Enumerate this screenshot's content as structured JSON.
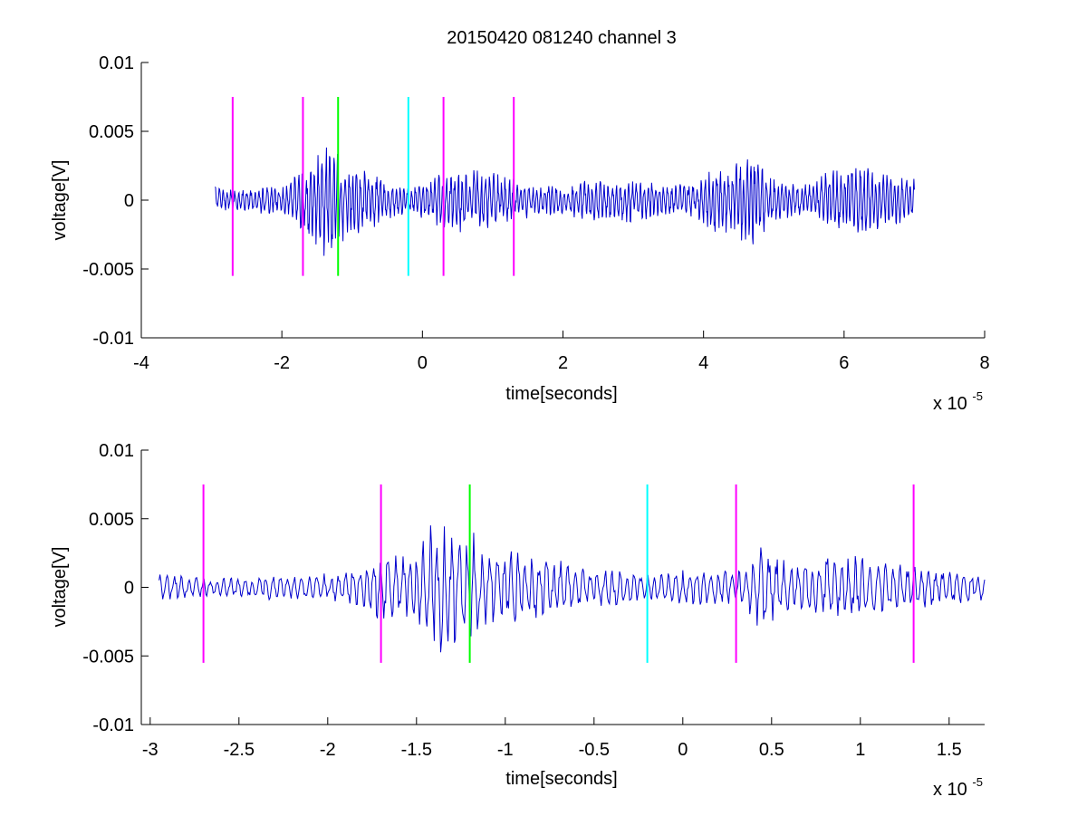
{
  "title": "20150420 081240 channel 3",
  "colors": {
    "signal": "#0000cc",
    "marker_magenta": "#ff00ff",
    "marker_green": "#00ff00",
    "marker_cyan": "#00ffff",
    "axes": "#000000",
    "background": "#ffffff"
  },
  "chart_data": [
    {
      "type": "line",
      "panel": "top",
      "title": "20150420 081240 channel 3",
      "xlabel": "time[seconds]",
      "ylabel": "voltage[V]",
      "x_exponent_label": "x 10",
      "x_exponent": "-5",
      "xlim": [
        -4,
        8
      ],
      "ylim": [
        -0.01,
        0.01
      ],
      "xticks": [
        -4,
        -2,
        0,
        2,
        4,
        6,
        8
      ],
      "xtick_labels": [
        "-4",
        "-2",
        "0",
        "2",
        "4",
        "6",
        "8"
      ],
      "yticks": [
        0.01,
        0.005,
        0,
        -0.005,
        -0.01
      ],
      "ytick_labels": [
        "0.01",
        "0.005",
        "0",
        "-0.005",
        "-0.01"
      ],
      "grid": false,
      "series": [
        {
          "color": "#0000cc",
          "x_start": -2.95,
          "x_end": 7.0,
          "envelope": [
            [
              -2.95,
              0.0012
            ],
            [
              -2.8,
              0.0009
            ],
            [
              -2.5,
              0.0009
            ],
            [
              -2.2,
              0.0011
            ],
            [
              -1.9,
              0.0012
            ],
            [
              -1.7,
              0.0028
            ],
            [
              -1.55,
              0.0035
            ],
            [
              -1.4,
              0.0055
            ],
            [
              -1.25,
              0.0045
            ],
            [
              -1.1,
              0.003
            ],
            [
              -0.8,
              0.0025
            ],
            [
              -0.5,
              0.0015
            ],
            [
              -0.2,
              0.001
            ],
            [
              0.2,
              0.002
            ],
            [
              0.4,
              0.0025
            ],
            [
              0.8,
              0.0025
            ],
            [
              1.2,
              0.002
            ],
            [
              1.6,
              0.0012
            ],
            [
              2.0,
              0.0012
            ],
            [
              2.5,
              0.0018
            ],
            [
              3.0,
              0.0018
            ],
            [
              3.5,
              0.0012
            ],
            [
              3.9,
              0.0014
            ],
            [
              4.1,
              0.0028
            ],
            [
              4.4,
              0.0033
            ],
            [
              4.7,
              0.0038
            ],
            [
              5.0,
              0.0018
            ],
            [
              5.5,
              0.0012
            ],
            [
              5.8,
              0.0025
            ],
            [
              6.3,
              0.0028
            ],
            [
              6.7,
              0.002
            ],
            [
              7.0,
              0.0018
            ]
          ]
        }
      ],
      "markers": [
        {
          "x": -2.7,
          "color": "#ff00ff",
          "y_range": [
            -0.0055,
            0.0075
          ]
        },
        {
          "x": -1.7,
          "color": "#ff00ff",
          "y_range": [
            -0.0055,
            0.0075
          ]
        },
        {
          "x": -1.2,
          "color": "#00ff00",
          "y_range": [
            -0.0055,
            0.0075
          ]
        },
        {
          "x": -0.2,
          "color": "#00ffff",
          "y_range": [
            -0.0055,
            0.0075
          ]
        },
        {
          "x": 0.3,
          "color": "#ff00ff",
          "y_range": [
            -0.0055,
            0.0075
          ]
        },
        {
          "x": 1.3,
          "color": "#ff00ff",
          "y_range": [
            -0.0055,
            0.0075
          ]
        }
      ]
    },
    {
      "type": "line",
      "panel": "bottom",
      "title": "",
      "xlabel": "time[seconds]",
      "ylabel": "voltage[V]",
      "x_exponent_label": "x 10",
      "x_exponent": "-5",
      "xlim": [
        -3.05,
        1.7
      ],
      "ylim": [
        -0.01,
        0.01
      ],
      "xticks": [
        -3,
        -2.5,
        -2,
        -1.5,
        -1,
        -0.5,
        0,
        0.5,
        1,
        1.5
      ],
      "xtick_labels": [
        "-3",
        "-2.5",
        "-2",
        "-1.5",
        "-1",
        "-0.5",
        "0",
        "0.5",
        "1",
        "1.5"
      ],
      "yticks": [
        0.01,
        0.005,
        0,
        -0.005,
        -0.01
      ],
      "ytick_labels": [
        "0.01",
        "0.005",
        "0",
        "-0.005",
        "-0.01"
      ],
      "grid": false,
      "series": [
        {
          "color": "#0000cc",
          "x_start": -2.95,
          "x_end": 1.7,
          "envelope": [
            [
              -2.95,
              0.0012
            ],
            [
              -2.8,
              0.0009
            ],
            [
              -2.6,
              0.0009
            ],
            [
              -2.4,
              0.001
            ],
            [
              -2.1,
              0.001
            ],
            [
              -1.9,
              0.0012
            ],
            [
              -1.75,
              0.0025
            ],
            [
              -1.7,
              0.003
            ],
            [
              -1.6,
              0.0028
            ],
            [
              -1.5,
              0.003
            ],
            [
              -1.4,
              0.0055
            ],
            [
              -1.3,
              0.005
            ],
            [
              -1.2,
              0.0048
            ],
            [
              -1.1,
              0.003
            ],
            [
              -0.9,
              0.003
            ],
            [
              -0.7,
              0.0022
            ],
            [
              -0.5,
              0.0015
            ],
            [
              -0.3,
              0.0014
            ],
            [
              -0.2,
              0.001
            ],
            [
              0.0,
              0.0014
            ],
            [
              0.2,
              0.0015
            ],
            [
              0.3,
              0.0012
            ],
            [
              0.45,
              0.0035
            ],
            [
              0.6,
              0.002
            ],
            [
              0.8,
              0.0025
            ],
            [
              1.0,
              0.0025
            ],
            [
              1.2,
              0.002
            ],
            [
              1.4,
              0.0018
            ],
            [
              1.7,
              0.001
            ]
          ]
        }
      ],
      "markers": [
        {
          "x": -2.7,
          "color": "#ff00ff",
          "y_range": [
            -0.0055,
            0.0075
          ]
        },
        {
          "x": -1.7,
          "color": "#ff00ff",
          "y_range": [
            -0.0055,
            0.0075
          ]
        },
        {
          "x": -1.2,
          "color": "#00ff00",
          "y_range": [
            -0.0055,
            0.0075
          ]
        },
        {
          "x": -0.2,
          "color": "#00ffff",
          "y_range": [
            -0.0055,
            0.0075
          ]
        },
        {
          "x": 0.3,
          "color": "#ff00ff",
          "y_range": [
            -0.0055,
            0.0075
          ]
        },
        {
          "x": 1.3,
          "color": "#ff00ff",
          "y_range": [
            -0.0055,
            0.0075
          ]
        }
      ]
    }
  ]
}
